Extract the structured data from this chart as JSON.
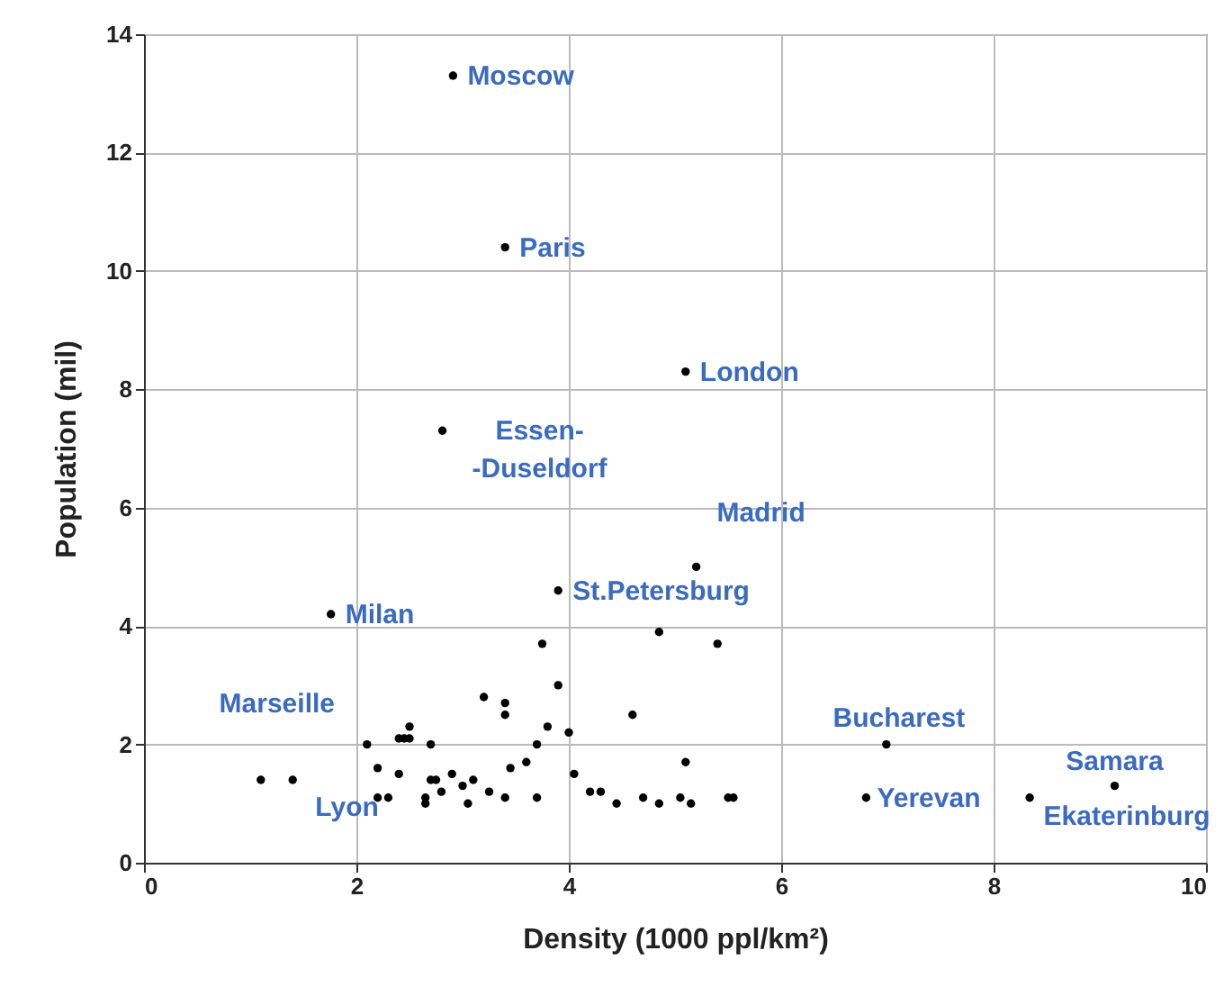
{
  "chart_data": {
    "type": "scatter",
    "xlabel": "Density (1000 ppl/km²)",
    "ylabel": "Population (mil)",
    "xlim": [
      0,
      10
    ],
    "xticks": [
      0,
      2,
      4,
      6,
      8,
      10
    ],
    "ylim": [
      0,
      14
    ],
    "yticks": [
      0,
      2,
      4,
      6,
      8,
      10,
      12,
      14
    ],
    "grid": true,
    "marker": "circle",
    "series": [
      {
        "color": "#000000",
        "x": [
          2.91,
          3.4,
          5.1,
          2.81,
          5.2,
          3.9,
          1.76,
          2.1,
          2.2,
          6.99,
          6.8,
          9.14,
          8.34,
          1.1,
          1.4,
          2.3,
          2.4,
          2.4,
          2.45,
          2.5,
          2.5,
          2.65,
          2.65,
          2.7,
          2.7,
          2.75,
          2.8,
          2.9,
          3.0,
          3.05,
          3.1,
          3.2,
          3.25,
          3.4,
          3.4,
          3.4,
          3.45,
          3.6,
          3.7,
          3.7,
          3.75,
          3.8,
          3.9,
          4.0,
          4.05,
          4.2,
          4.3,
          4.45,
          4.6,
          4.7,
          4.85,
          4.85,
          5.05,
          5.1,
          5.15,
          5.4,
          5.5,
          5.55,
          2.2
        ],
        "values": [
          13.3,
          10.4,
          8.3,
          7.3,
          5.0,
          4.6,
          4.2,
          2.0,
          1.1,
          2.0,
          1.1,
          1.3,
          1.1,
          1.4,
          1.4,
          1.1,
          1.5,
          2.1,
          2.1,
          2.1,
          2.3,
          1.1,
          1.0,
          2.0,
          1.4,
          1.4,
          1.2,
          1.5,
          1.3,
          1.0,
          1.4,
          2.8,
          1.2,
          2.7,
          2.5,
          1.1,
          1.6,
          1.7,
          2.0,
          1.1,
          3.7,
          2.3,
          3.0,
          2.2,
          1.5,
          1.2,
          1.2,
          1.0,
          2.5,
          1.1,
          3.9,
          1.0,
          1.1,
          1.7,
          1.0,
          3.7,
          1.1,
          1.1,
          1.6
        ]
      }
    ],
    "annotations": [
      {
        "text": "Moscow",
        "x": 2.91,
        "y": 13.3
      },
      {
        "text": "Paris",
        "x": 3.4,
        "y": 10.4
      },
      {
        "text": "London",
        "x": 5.1,
        "y": 8.3
      },
      {
        "text": "Essen-\n-Duseldorf",
        "x": 2.81,
        "y": 7.3
      },
      {
        "text": "Madrid",
        "x": 5.2,
        "y": 5.0
      },
      {
        "text": "St.Petersburg",
        "x": 3.9,
        "y": 4.6
      },
      {
        "text": "Milan",
        "x": 1.76,
        "y": 4.2
      },
      {
        "text": "Marseille",
        "x": 2.1,
        "y": 2.0
      },
      {
        "text": "Lyon",
        "x": 2.2,
        "y": 1.1
      },
      {
        "text": "Bucharest",
        "x": 6.99,
        "y": 2.0
      },
      {
        "text": "Yerevan",
        "x": 6.8,
        "y": 1.1
      },
      {
        "text": "Samara",
        "x": 9.14,
        "y": 1.3
      },
      {
        "text": "Ekaterinburg",
        "x": 8.34,
        "y": 1.1
      }
    ]
  }
}
